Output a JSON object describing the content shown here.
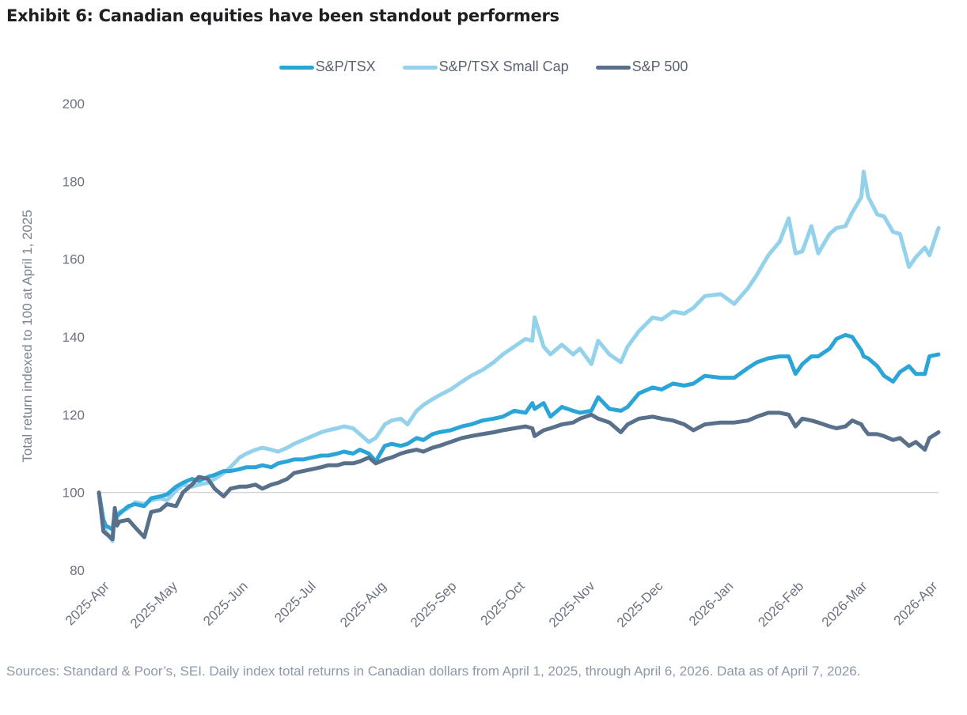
{
  "title": "Exhibit 6: Canadian equities have been standout performers",
  "source_note": "Sources: Standard & Poor’s, SEI. Daily index total returns in Canadian dollars from April 1, 2025, through April 6, 2026. Data as of April 7, 2026.",
  "chart_data": {
    "type": "line",
    "title": "Exhibit 6: Canadian equities have been standout performers",
    "xlabel": "",
    "ylabel": "Total return indexed to 100 at April 1, 2025",
    "ylim": [
      80,
      200
    ],
    "yticks": [
      80,
      100,
      120,
      140,
      160,
      180,
      200
    ],
    "reference_line": 100,
    "grid": false,
    "legend_position": "top-center",
    "x_start": "2025-04-01",
    "x_end": "2026-04-06",
    "xtick_labels": [
      "2025-Apr",
      "2025-May",
      "2025-Jun",
      "2025-Jul",
      "2025-Aug",
      "2025-Sep",
      "2025-Oct",
      "2025-Nov",
      "2025-Dec",
      "2026-Jan",
      "2026-Feb",
      "2026-Mar",
      "2026-Apr"
    ],
    "xtick_dates": [
      "2025-04-01",
      "2025-05-01",
      "2025-06-01",
      "2025-07-01",
      "2025-08-01",
      "2025-09-01",
      "2025-10-01",
      "2025-11-01",
      "2025-12-01",
      "2026-01-01",
      "2026-02-01",
      "2026-03-01",
      "2026-04-01"
    ],
    "x": [
      "2025-04-01",
      "2025-04-03",
      "2025-04-04",
      "2025-04-07",
      "2025-04-08",
      "2025-04-09",
      "2025-04-10",
      "2025-04-14",
      "2025-04-17",
      "2025-04-21",
      "2025-04-24",
      "2025-04-28",
      "2025-05-01",
      "2025-05-05",
      "2025-05-08",
      "2025-05-12",
      "2025-05-15",
      "2025-05-19",
      "2025-05-22",
      "2025-05-26",
      "2025-05-29",
      "2025-06-02",
      "2025-06-05",
      "2025-06-09",
      "2025-06-12",
      "2025-06-16",
      "2025-06-19",
      "2025-06-23",
      "2025-06-26",
      "2025-06-30",
      "2025-07-04",
      "2025-07-08",
      "2025-07-11",
      "2025-07-15",
      "2025-07-18",
      "2025-07-22",
      "2025-07-25",
      "2025-07-29",
      "2025-08-01",
      "2025-08-05",
      "2025-08-08",
      "2025-08-12",
      "2025-08-15",
      "2025-08-19",
      "2025-08-22",
      "2025-08-26",
      "2025-08-29",
      "2025-09-03",
      "2025-09-08",
      "2025-09-12",
      "2025-09-17",
      "2025-09-22",
      "2025-09-26",
      "2025-10-01",
      "2025-10-06",
      "2025-10-09",
      "2025-10-10",
      "2025-10-14",
      "2025-10-17",
      "2025-10-22",
      "2025-10-27",
      "2025-10-30",
      "2025-11-04",
      "2025-11-07",
      "2025-11-12",
      "2025-11-17",
      "2025-11-20",
      "2025-11-25",
      "2025-12-01",
      "2025-12-05",
      "2025-12-10",
      "2025-12-15",
      "2025-12-19",
      "2025-12-24",
      "2025-12-31",
      "2026-01-06",
      "2026-01-12",
      "2026-01-16",
      "2026-01-21",
      "2026-01-26",
      "2026-01-30",
      "2026-02-02",
      "2026-02-05",
      "2026-02-09",
      "2026-02-12",
      "2026-02-17",
      "2026-02-20",
      "2026-02-24",
      "2026-02-27",
      "2026-03-03",
      "2026-03-04",
      "2026-03-06",
      "2026-03-10",
      "2026-03-13",
      "2026-03-17",
      "2026-03-20",
      "2026-03-24",
      "2026-03-27",
      "2026-03-31",
      "2026-04-02",
      "2026-04-06"
    ],
    "series": [
      {
        "name": "S&P/TSX",
        "color": "#2ba5d8",
        "values": [
          100.0,
          93.0,
          91.5,
          90.5,
          95.0,
          94.0,
          94.5,
          96.5,
          97.0,
          96.5,
          98.5,
          99.0,
          99.5,
          101.5,
          102.5,
          103.5,
          103.0,
          104.0,
          104.5,
          105.5,
          105.5,
          106.0,
          106.5,
          106.5,
          107.0,
          106.5,
          107.5,
          108.0,
          108.5,
          108.5,
          109.0,
          109.5,
          109.5,
          110.0,
          110.5,
          110.0,
          111.0,
          110.0,
          108.0,
          112.0,
          112.5,
          112.0,
          112.5,
          114.0,
          113.5,
          115.0,
          115.5,
          116.0,
          117.0,
          117.5,
          118.5,
          119.0,
          119.5,
          121.0,
          120.5,
          123.0,
          121.5,
          123.0,
          119.5,
          122.0,
          121.0,
          120.5,
          121.0,
          124.5,
          121.5,
          121.0,
          122.0,
          125.5,
          127.0,
          126.5,
          128.0,
          127.5,
          128.0,
          130.0,
          129.5,
          129.5,
          132.0,
          133.5,
          134.5,
          135.0,
          135.0,
          130.5,
          133.0,
          135.0,
          135.0,
          137.0,
          139.5,
          140.5,
          140.0,
          136.5,
          135.0,
          134.5,
          132.5,
          130.0,
          128.5,
          131.0,
          132.5,
          130.5,
          130.5,
          135.0,
          135.5
        ]
      },
      {
        "name": "S&P/TSX Small Cap",
        "color": "#94d2ec",
        "values": [
          100.0,
          92.0,
          90.0,
          87.5,
          94.0,
          93.5,
          95.0,
          96.0,
          97.5,
          97.0,
          98.0,
          98.5,
          98.0,
          100.5,
          102.0,
          101.5,
          102.0,
          102.5,
          103.5,
          105.0,
          106.5,
          109.0,
          110.0,
          111.0,
          111.5,
          111.0,
          110.5,
          111.5,
          112.5,
          113.5,
          114.5,
          115.5,
          116.0,
          116.5,
          117.0,
          116.5,
          115.0,
          113.0,
          114.0,
          117.5,
          118.5,
          119.0,
          117.5,
          121.0,
          122.5,
          124.0,
          125.0,
          126.5,
          128.5,
          130.0,
          131.5,
          133.5,
          135.5,
          137.5,
          139.5,
          139.0,
          145.0,
          137.5,
          135.5,
          138.0,
          135.5,
          137.0,
          133.0,
          139.0,
          135.5,
          133.5,
          137.5,
          141.5,
          145.0,
          144.5,
          146.5,
          146.0,
          147.5,
          150.5,
          151.0,
          148.5,
          152.5,
          156.0,
          161.0,
          164.5,
          170.5,
          161.5,
          162.0,
          168.5,
          161.5,
          166.5,
          168.0,
          168.5,
          172.0,
          176.0,
          182.5,
          176.0,
          171.5,
          171.0,
          167.0,
          166.5,
          158.0,
          160.5,
          163.0,
          161.0,
          168.0
        ]
      },
      {
        "name": "S&P 500",
        "color": "#587089",
        "values": [
          100.0,
          90.0,
          89.5,
          88.0,
          96.0,
          91.5,
          92.5,
          93.0,
          91.0,
          88.5,
          95.0,
          95.5,
          97.0,
          96.5,
          100.0,
          102.0,
          104.0,
          103.5,
          101.0,
          99.0,
          101.0,
          101.5,
          101.5,
          102.0,
          101.0,
          102.0,
          102.5,
          103.5,
          105.0,
          105.5,
          106.0,
          106.5,
          107.0,
          107.0,
          107.5,
          107.5,
          108.0,
          109.0,
          107.5,
          108.5,
          109.0,
          110.0,
          110.5,
          111.0,
          110.5,
          111.5,
          112.0,
          113.0,
          114.0,
          114.5,
          115.0,
          115.5,
          116.0,
          116.5,
          117.0,
          116.5,
          114.5,
          116.0,
          116.5,
          117.5,
          118.0,
          119.0,
          120.0,
          119.0,
          118.0,
          115.5,
          117.5,
          119.0,
          119.5,
          119.0,
          118.5,
          117.5,
          116.0,
          117.5,
          118.0,
          118.0,
          118.5,
          119.5,
          120.5,
          120.5,
          120.0,
          117.0,
          119.0,
          118.5,
          118.0,
          117.0,
          116.5,
          117.0,
          118.5,
          117.5,
          116.5,
          115.0,
          115.0,
          114.5,
          113.5,
          114.0,
          112.0,
          113.0,
          111.0,
          114.0,
          115.5
        ]
      }
    ]
  }
}
